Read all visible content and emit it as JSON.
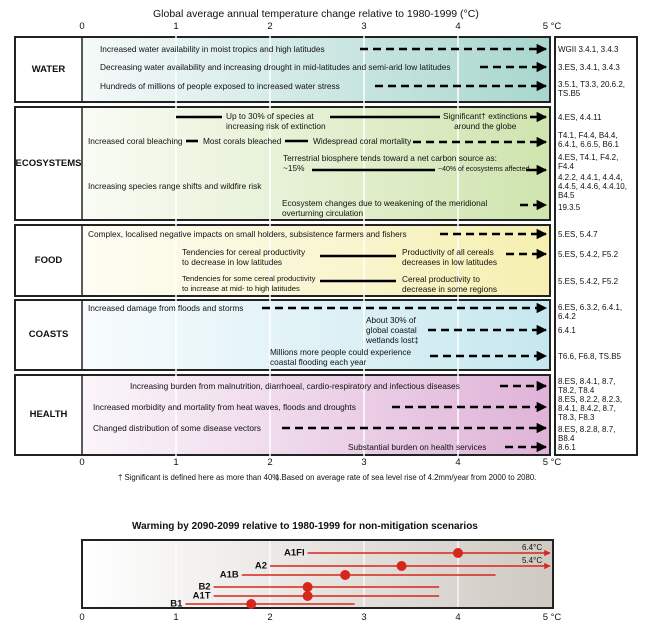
{
  "title": "Global average annual temperature change relative to 1980-1999 (°C)",
  "axis_ticks": [
    "0",
    "1",
    "2",
    "3",
    "4",
    "5 °C"
  ],
  "colors": {
    "water": "#a9d6cf",
    "ecosystems": "#cfe4ae",
    "food": "#f6efb0",
    "coasts": "#c6e7ef",
    "health": "#dfb3d8",
    "scenario": "#d8261c"
  },
  "panels": {
    "water": {
      "label": "WATER",
      "items": [
        "Increased water availability in moist tropics and high latitudes",
        "Decreasing water availability and increasing drought in mid-latitudes and semi-arid low latitudes",
        "Hundreds of millions of people exposed to increased water stress"
      ],
      "refs": [
        "WGII 3.4.1, 3.4.3",
        "3.ES, 3.4.1, 3.4.3",
        "3.5.1, T3.3, 20.6.2,\nTS.B5"
      ]
    },
    "ecosystems": {
      "label": "ECOSYSTEMS",
      "items": [
        "Up to 30% of species at\nincreasing risk of extinction",
        "Significant† extinctions\naround the globe",
        "Increased coral bleaching",
        "Most corals bleached",
        "Widespread coral mortality",
        "Terrestrial biosphere tends toward a net carbon source as:",
        "~15%",
        "~40% of ecosystems affected",
        "Increasing species range shifts and wildfire risk",
        "Ecosystem changes due to weakening of the meridional\noverturning circulation"
      ],
      "refs": [
        "4.ES, 4.4.11",
        "T4.1, F4.4, B4.4,\n6.4.1, 6.6.5, B6.1",
        "4.ES, T4.1, F4.2,\nF4.4",
        "4.2.2, 4.4.1, 4.4.4,\n4.4.5, 4.4.6, 4.4.10,\nB4.5",
        "19.3.5"
      ]
    },
    "food": {
      "label": "FOOD",
      "items": [
        "Complex, localised negative impacts on small holders, subsistence farmers and fishers",
        "Tendencies for cereal productivity\nto decrease in low latitudes",
        "Productivity of all cereals\ndecreases in low latitudes",
        "Tendencies for some cereal productivity\nto increase at mid- to high latitudes",
        "Cereal productivity to\ndecrease in some regions"
      ],
      "refs": [
        "5.ES, 5.4.7",
        "5.ES, 5.4.2, F5.2",
        "5.ES, 5.4.2, F5.2"
      ]
    },
    "coasts": {
      "label": "COASTS",
      "items": [
        "Increased damage from floods and storms",
        "About 30% of\nglobal coastal\nwetlands lost‡",
        "Millions more people could experience\ncoastal flooding each year"
      ],
      "refs": [
        "6.ES, 6.3.2, 6.4.1,\n6.4.2",
        "6.4.1",
        "T6.6, F6.8, TS.B5"
      ]
    },
    "health": {
      "label": "HEALTH",
      "items": [
        "Increasing burden from malnutrition, diarrhoeal, cardio-respiratory and infectious diseases",
        "Increased morbidity and mortality from heat waves, floods and droughts",
        "Changed distribution of some disease vectors",
        "Substantial burden on health services"
      ],
      "refs": [
        "8.ES, 8.4.1, 8.7,\nT8.2, T8.4",
        "8.ES, 8.2.2, 8.2.3,\n8.4.1, 8.4.2, 8.7,\nT8.3, F8.3",
        "8.ES, 8.2.8, 8.7,\nB8.4",
        "8.6.1"
      ]
    }
  },
  "footnotes": [
    "† Significant is defined here as more than 40%.",
    "‡ Based on average rate of sea level rise of 4.2mm/year from 2000 to 2080."
  ],
  "chart_data": {
    "type": "range-dot",
    "title": "Warming by 2090-2099 relative to 1980-1999 for non-mitigation scenarios",
    "xlim": [
      0,
      5
    ],
    "x_ticks": [
      "0",
      "1",
      "2",
      "3",
      "4",
      "5 °C"
    ],
    "series": [
      {
        "name": "A1FI",
        "best": 4.0,
        "low": 2.4,
        "high": 6.4,
        "high_label": "6.4°C"
      },
      {
        "name": "A2",
        "best": 3.4,
        "low": 2.0,
        "high": 5.4,
        "high_label": "5.4°C"
      },
      {
        "name": "A1B",
        "best": 2.8,
        "low": 1.7,
        "high": 4.4
      },
      {
        "name": "B2",
        "best": 2.4,
        "low": 1.4,
        "high": 3.8
      },
      {
        "name": "A1T",
        "best": 2.4,
        "low": 1.4,
        "high": 3.8
      },
      {
        "name": "B1",
        "best": 1.8,
        "low": 1.1,
        "high": 2.9
      }
    ]
  }
}
